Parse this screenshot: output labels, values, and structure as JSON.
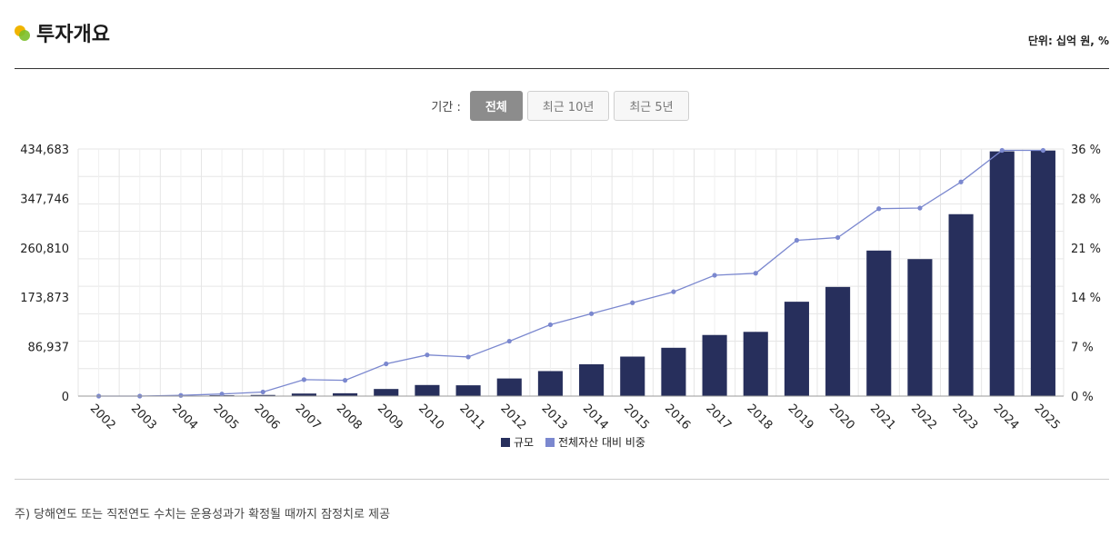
{
  "header": {
    "title": "투자개요",
    "unit": "단위: 십억 원, %"
  },
  "period": {
    "label": "기간 :",
    "buttons": [
      "전체",
      "최근 10년",
      "최근 5년"
    ],
    "selected": "전체"
  },
  "colors": {
    "bar": "#272f5c",
    "line": "#7b88cf",
    "active_button": "#8c8c8c"
  },
  "icons": {
    "title_marker": "circle-dot-icon"
  },
  "chart_data": {
    "type": "bar",
    "categories": [
      "2002",
      "2003",
      "2004",
      "2005",
      "2006",
      "2007",
      "2008",
      "2009",
      "2010",
      "2011",
      "2012",
      "2013",
      "2014",
      "2015",
      "2016",
      "2017",
      "2018",
      "2019",
      "2020",
      "2021",
      "2022",
      "2023",
      "2024",
      "2025"
    ],
    "series": [
      {
        "name": "규모",
        "type": "bar",
        "axis": "left",
        "values": [
          200,
          500,
          1000,
          1500,
          2000,
          4500,
          5000,
          12500,
          19500,
          19000,
          31000,
          44000,
          56000,
          69500,
          85000,
          107500,
          113000,
          166000,
          192000,
          256000,
          241000,
          320000,
          430500,
          432000
        ]
      },
      {
        "name": "전체자산 대비 비중",
        "type": "line",
        "axis": "right",
        "values": [
          0,
          0,
          0.1,
          0.3,
          0.6,
          2.4,
          2.3,
          4.7,
          6.0,
          5.7,
          8.0,
          10.4,
          12.0,
          13.6,
          15.2,
          17.6,
          17.9,
          22.7,
          23.1,
          27.3,
          27.4,
          31.2,
          35.8,
          35.8
        ]
      }
    ],
    "y_left": {
      "ticks": [
        "434,683",
        "347,746",
        "260,810",
        "173,873",
        "86,937",
        "0"
      ],
      "range": [
        0,
        434683
      ]
    },
    "y_right": {
      "ticks": [
        "36 %",
        "28 %",
        "21 %",
        "14 %",
        "7 %",
        "0 %"
      ],
      "range": [
        0,
        36
      ]
    },
    "grid": true,
    "legend": "bottom-center"
  },
  "footnote": "주) 당해연도 또는 직전연도 수치는 운용성과가 확정될 때까지 잠정치로 제공"
}
